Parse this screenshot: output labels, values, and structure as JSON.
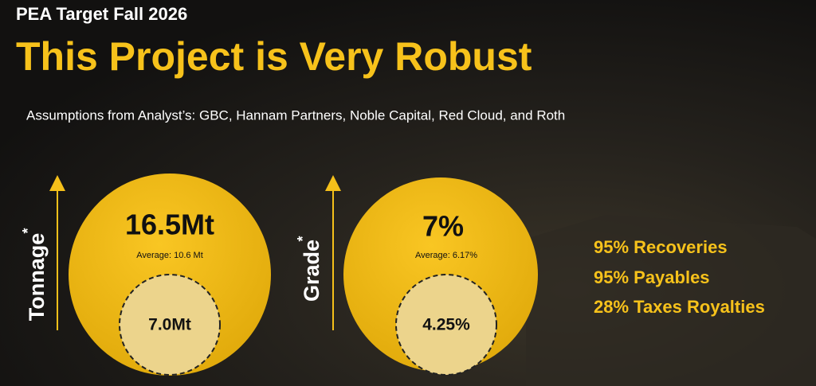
{
  "header": {
    "kicker": "PEA Target Fall 2026",
    "title": "This Project is Very Robust",
    "subtitle": "Assumptions from Analyst’s: GBC, Hannam Partners, Noble Capital, Red Cloud, and Roth"
  },
  "panels": [
    {
      "axis_label": "Tonnage",
      "asterisk": "*",
      "target": "16.5Mt",
      "average": "Average: 10.6 Mt",
      "base": "7.0Mt"
    },
    {
      "axis_label": "Grade",
      "asterisk": "*",
      "target": "7%",
      "average": "Average: 6.17%",
      "base": "4.25%"
    }
  ],
  "assumptions": [
    "95% Recoveries",
    "95% Payables",
    "28% Taxes Royalties"
  ]
}
